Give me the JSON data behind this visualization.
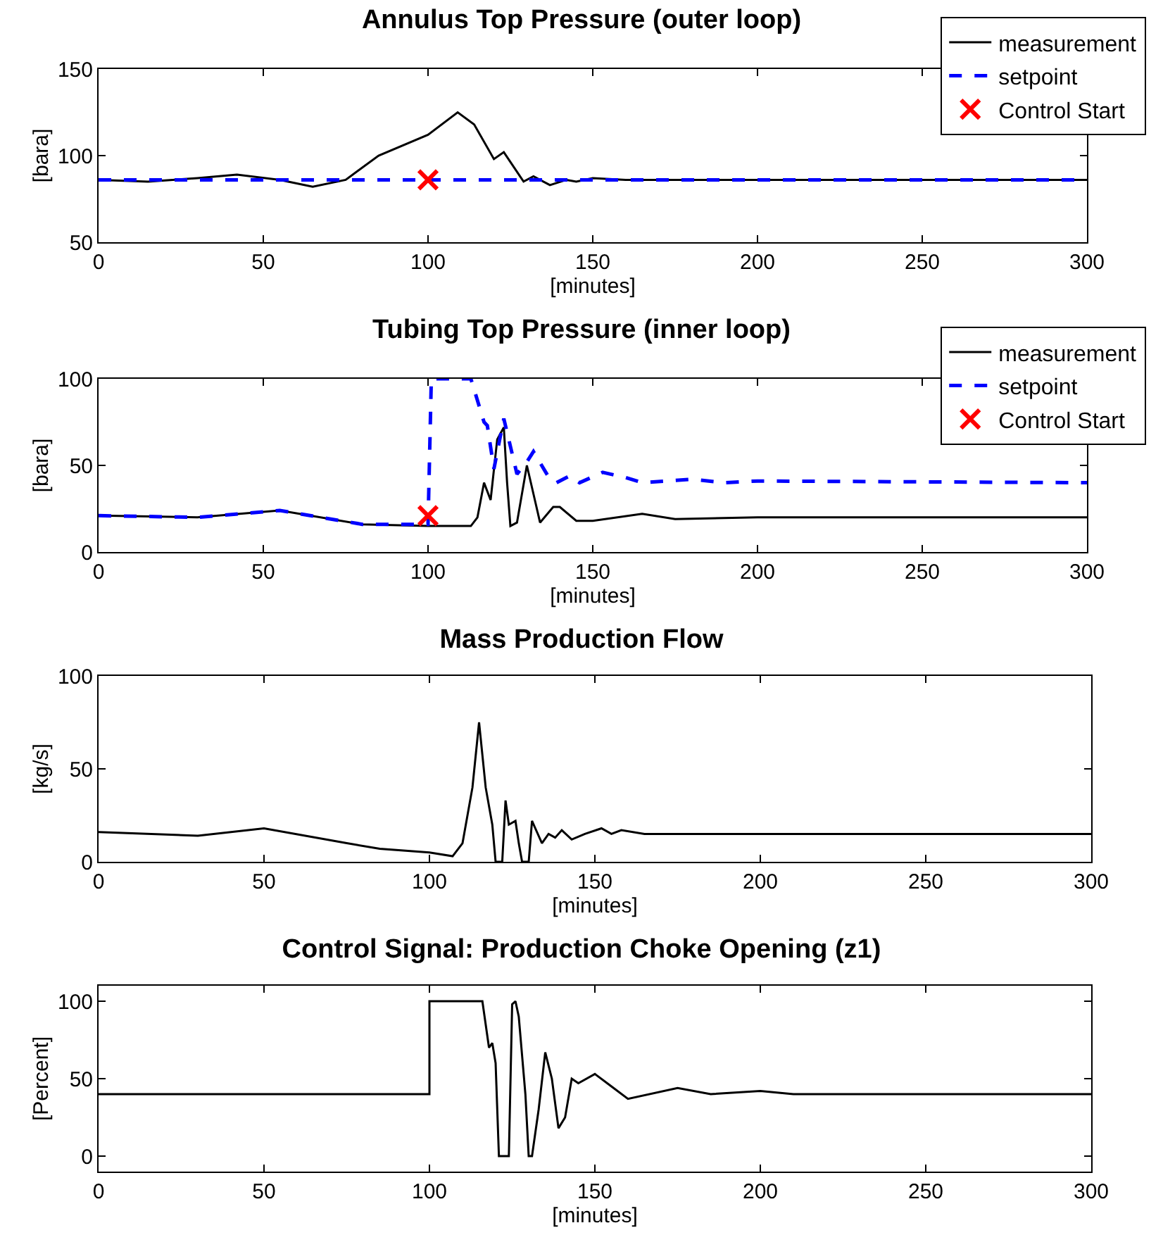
{
  "chart_data": [
    {
      "type": "line",
      "title": "Annulus Top Pressure (outer loop)",
      "xlabel": "[minutes]",
      "ylabel": "[bara]",
      "xlim": [
        0,
        300
      ],
      "xticks": [
        0,
        50,
        100,
        150,
        200,
        250,
        300
      ],
      "ylim": [
        50,
        150
      ],
      "yticks": [
        50,
        100,
        150
      ],
      "grid": false,
      "legend": "top right",
      "series": [
        {
          "name": "measurement",
          "color": "#000000",
          "line_style": "solid",
          "x": [
            0,
            15,
            30,
            42,
            55,
            65,
            75,
            85,
            100,
            109,
            114,
            120,
            123,
            129,
            132,
            137,
            142,
            145,
            150,
            160,
            300
          ],
          "values": [
            86,
            85,
            87,
            89,
            86,
            82,
            86,
            100,
            112,
            125,
            118,
            98,
            102,
            85,
            88,
            83,
            86,
            85,
            87,
            86,
            86
          ]
        },
        {
          "name": "setpoint",
          "color": "#0000ff",
          "line_style": "dashed",
          "x": [
            0,
            300
          ],
          "values": [
            86,
            86
          ]
        },
        {
          "name": "Control Start",
          "type": "scatter",
          "marker": "cross",
          "color": "#ff0000",
          "x": [
            100
          ],
          "values": [
            86
          ]
        }
      ]
    },
    {
      "type": "line",
      "title": "Tubing Top Pressure (inner loop)",
      "xlabel": "[minutes]",
      "ylabel": "[bara]",
      "xlim": [
        0,
        300
      ],
      "xticks": [
        0,
        50,
        100,
        150,
        200,
        250,
        300
      ],
      "ylim": [
        0,
        100
      ],
      "yticks": [
        0,
        50,
        100
      ],
      "grid": false,
      "legend": "top right",
      "series": [
        {
          "name": "measurement",
          "color": "#000000",
          "line_style": "solid",
          "x": [
            0,
            30,
            55,
            80,
            100,
            113,
            115,
            117,
            119,
            121,
            123,
            124,
            125,
            127,
            130,
            134,
            138,
            140,
            145,
            150,
            165,
            175,
            200,
            300
          ],
          "values": [
            21,
            20,
            24,
            16,
            15,
            15,
            20,
            40,
            30,
            65,
            72,
            40,
            15,
            17,
            50,
            17,
            26,
            26,
            18,
            18,
            22,
            19,
            20,
            20
          ]
        },
        {
          "name": "setpoint",
          "color": "#0000ff",
          "line_style": "dashed",
          "x": [
            0,
            30,
            55,
            80,
            100,
            101,
            113,
            117,
            118,
            120,
            123,
            127,
            130,
            132,
            137,
            139,
            143,
            146,
            153,
            160,
            165,
            180,
            190,
            200,
            300
          ],
          "values": [
            21,
            20,
            24,
            16,
            16,
            100,
            100,
            75,
            73,
            48,
            77,
            45,
            52,
            58,
            42,
            40,
            44,
            40,
            46,
            43,
            40,
            42,
            40,
            41,
            40
          ]
        },
        {
          "name": "Control Start",
          "type": "scatter",
          "marker": "cross",
          "color": "#ff0000",
          "x": [
            100
          ],
          "values": [
            21
          ]
        }
      ]
    },
    {
      "type": "line",
      "title": "Mass Production Flow",
      "xlabel": "[minutes]",
      "ylabel": "[kg/s]",
      "xlim": [
        0,
        300
      ],
      "xticks": [
        0,
        50,
        100,
        150,
        200,
        250,
        300
      ],
      "ylim": [
        0,
        100
      ],
      "yticks": [
        0,
        50,
        100
      ],
      "grid": false,
      "legend": false,
      "series": [
        {
          "color": "#000000",
          "line_style": "solid",
          "x": [
            0,
            30,
            50,
            75,
            85,
            100,
            107,
            110,
            113,
            115,
            117,
            119,
            120,
            122,
            123,
            124,
            126,
            127,
            128,
            130,
            131,
            134,
            136,
            138,
            140,
            143,
            147,
            152,
            155,
            158,
            165,
            300
          ],
          "values": [
            16,
            14,
            18,
            10,
            7,
            5,
            3,
            10,
            40,
            75,
            40,
            20,
            0,
            0,
            33,
            20,
            22,
            10,
            0,
            0,
            22,
            10,
            15,
            13,
            17,
            12,
            15,
            18,
            15,
            17,
            15,
            15
          ]
        }
      ]
    },
    {
      "type": "line",
      "title": "Control Signal: Production Choke Opening (z1)",
      "xlabel": "[minutes]",
      "ylabel": "[Percent]",
      "xlim": [
        0,
        300
      ],
      "xticks": [
        0,
        50,
        100,
        150,
        200,
        250,
        300
      ],
      "ylim": [
        -10,
        110
      ],
      "yticks": [
        0,
        50,
        100
      ],
      "grid": false,
      "legend": false,
      "series": [
        {
          "color": "#000000",
          "line_style": "solid",
          "x": [
            0,
            100,
            100,
            116,
            118,
            119,
            120,
            121,
            124,
            125,
            126,
            127,
            129,
            130,
            131,
            133,
            135,
            137,
            139,
            141,
            143,
            145,
            150,
            155,
            160,
            175,
            185,
            200,
            210,
            300
          ],
          "values": [
            40,
            40,
            100,
            100,
            70,
            73,
            60,
            0,
            0,
            98,
            100,
            90,
            40,
            0,
            0,
            30,
            67,
            50,
            18,
            25,
            50,
            47,
            53,
            45,
            37,
            44,
            40,
            42,
            40,
            40
          ]
        }
      ]
    }
  ]
}
